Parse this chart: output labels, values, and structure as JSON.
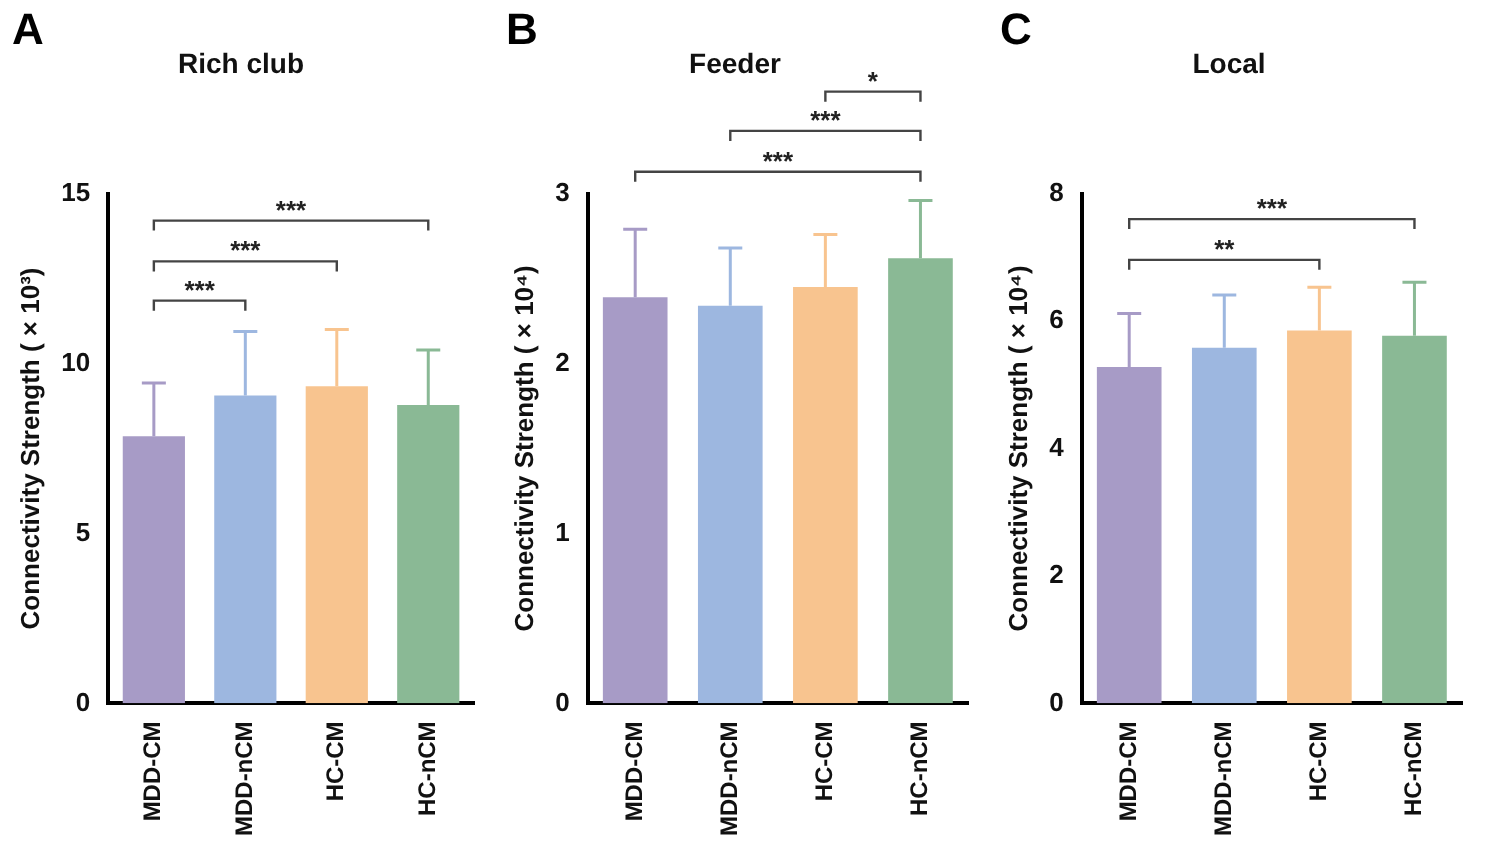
{
  "chart_data": [
    {
      "type": "bar",
      "title": "Rich club",
      "ylabel": "Connectivity Strength ( × 10³)",
      "categories": [
        "MDD-CM",
        "MDD-nCM",
        "HC-CM",
        "HC-nCM"
      ],
      "values": [
        7.86,
        9.06,
        9.33,
        8.78
      ],
      "errors": [
        1.57,
        1.88,
        1.67,
        1.62
      ],
      "colors": [
        "#a79bc6",
        "#9db7e0",
        "#f8c48f",
        "#8ab995"
      ],
      "ylim": [
        0,
        15
      ],
      "yticks": [
        0,
        5,
        10,
        15
      ],
      "grid": false,
      "legend": false,
      "annotations": [
        "A",
        "***",
        "***",
        "***"
      ]
    },
    {
      "type": "bar",
      "title": "Feeder",
      "ylabel": "Connectivity Strength ( × 10⁴)",
      "categories": [
        "MDD-CM",
        "MDD-nCM",
        "HC-CM",
        "HC-nCM"
      ],
      "values": [
        2.39,
        2.34,
        2.45,
        2.62
      ],
      "errors": [
        0.4,
        0.34,
        0.31,
        0.34
      ],
      "colors": [
        "#a79bc6",
        "#9db7e0",
        "#f8c48f",
        "#8ab995"
      ],
      "ylim": [
        0,
        3
      ],
      "yticks": [
        0,
        1,
        2,
        3
      ],
      "grid": false,
      "legend": false,
      "annotations": [
        "B",
        "***",
        "***",
        "*"
      ]
    },
    {
      "type": "bar",
      "title": "Local",
      "ylabel": "Connectivity Strength ( × 10⁴)",
      "categories": [
        "MDD-CM",
        "MDD-nCM",
        "HC-CM",
        "HC-nCM"
      ],
      "values": [
        5.28,
        5.58,
        5.85,
        5.77
      ],
      "errors": [
        0.84,
        0.83,
        0.68,
        0.84
      ],
      "colors": [
        "#a79bc6",
        "#9db7e0",
        "#f8c48f",
        "#8ab995"
      ],
      "ylim": [
        0,
        8
      ],
      "yticks": [
        0,
        2,
        4,
        6,
        8
      ],
      "grid": false,
      "legend": false,
      "annotations": [
        "C",
        "**",
        "***"
      ]
    }
  ]
}
